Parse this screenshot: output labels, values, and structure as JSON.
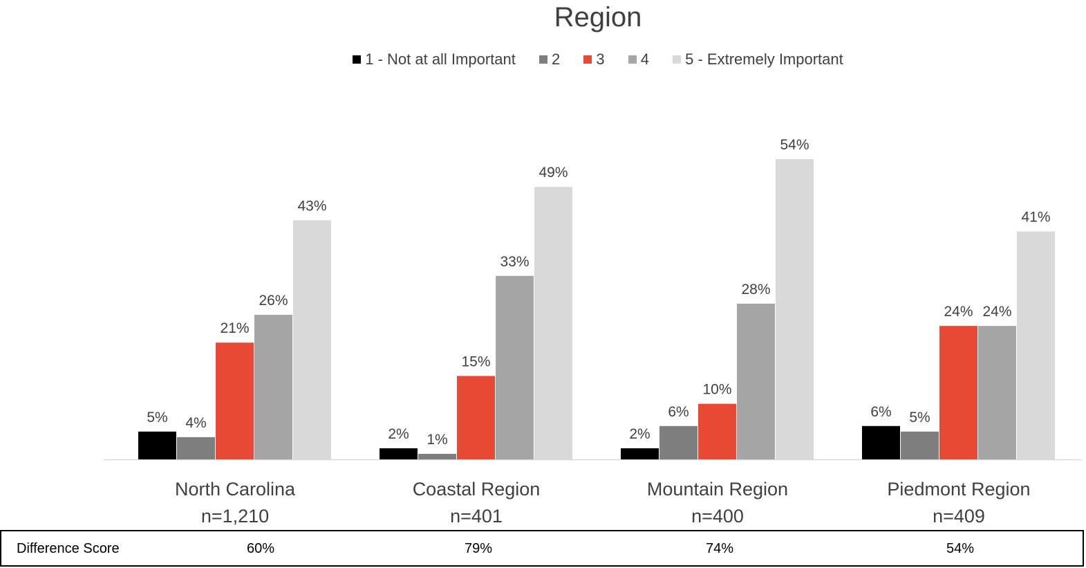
{
  "chart_data": {
    "type": "bar",
    "title": "Region",
    "categories": [
      "North Carolina",
      "Coastal Region",
      "Mountain Region",
      "Piedmont Region"
    ],
    "sublabels": [
      "n=1,210",
      "n=401",
      "n=400",
      "n=409"
    ],
    "series": [
      {
        "name": "1 - Not at all Important",
        "color": "#000000",
        "values": [
          5,
          2,
          2,
          6
        ]
      },
      {
        "name": "2",
        "color": "#7f7f7f",
        "values": [
          4,
          1,
          6,
          5
        ]
      },
      {
        "name": "3",
        "color": "#e84a36",
        "values": [
          21,
          15,
          10,
          24
        ]
      },
      {
        "name": "4",
        "color": "#a6a6a6",
        "values": [
          26,
          33,
          28,
          24
        ]
      },
      {
        "name": "5 - Extremely Important",
        "color": "#d9d9d9",
        "values": [
          43,
          49,
          54,
          41
        ]
      }
    ],
    "value_suffix": "%",
    "ylim": [
      0,
      54
    ],
    "legend_position": "top",
    "grid": false
  },
  "difference_table": {
    "label": "Difference Score",
    "values": [
      "60%",
      "79%",
      "74%",
      "54%"
    ]
  }
}
